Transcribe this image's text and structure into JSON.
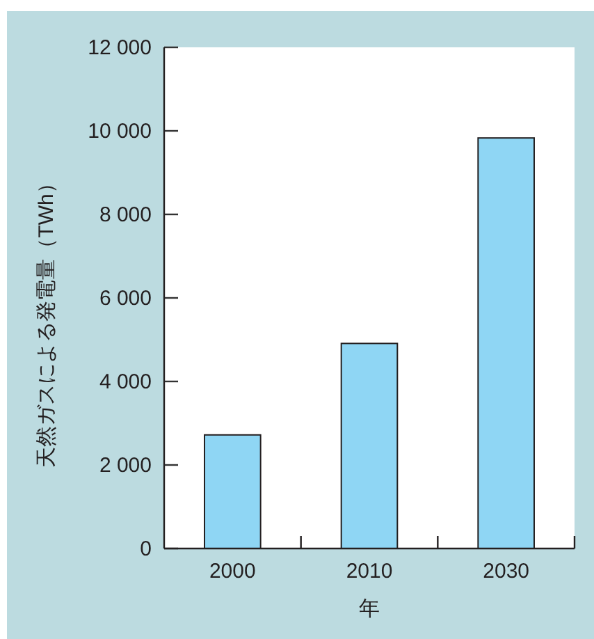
{
  "chart_data": {
    "type": "bar",
    "xlabel": "年",
    "ylabel": "天然ガスによる発電量（TWh）",
    "categories": [
      "2000",
      "2010",
      "2030"
    ],
    "values": [
      2720,
      4910,
      9830
    ],
    "color": "#8fd6f4",
    "ylim": [
      0,
      12000
    ],
    "yticks": [
      0,
      {
        "value": 2000,
        "label": "2 000"
      },
      {
        "value": 4000,
        "label": "4 000"
      },
      {
        "value": 6000,
        "label": "6 000"
      },
      {
        "value": 8000,
        "label": "8 000"
      },
      {
        "value": 10000,
        "label": "10 000"
      },
      {
        "value": 12000,
        "label": "12 000"
      }
    ],
    "grid": false
  }
}
